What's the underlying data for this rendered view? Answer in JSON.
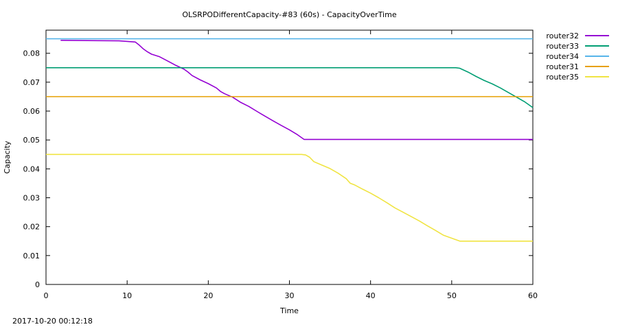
{
  "footer": {
    "timestamp": "2017-10-20 00:12:18"
  },
  "chart_data": {
    "type": "line",
    "title": "OLSRPODifferentCapacity-#83 (60s) - CapacityOverTime",
    "xlabel": "Time",
    "ylabel": "Capacity",
    "xlim": [
      0,
      60
    ],
    "ylim": [
      0,
      0.088
    ],
    "xticks": [
      0,
      10,
      20,
      30,
      40,
      50,
      60
    ],
    "xtick_labels": [
      "0",
      "10",
      "20",
      "30",
      "40",
      "50",
      "60"
    ],
    "yticks": [
      0,
      0.01,
      0.02,
      0.03,
      0.04,
      0.05,
      0.06,
      0.07,
      0.08
    ],
    "ytick_labels": [
      "0",
      "0.01",
      "0.02",
      "0.03",
      "0.04",
      "0.05",
      "0.06",
      "0.07",
      "0.08"
    ],
    "grid": false,
    "legend_position": "outside-top-right",
    "series": [
      {
        "name": "router32",
        "color": "#9400d3",
        "x": [
          1.8,
          9.0,
          11.0,
          11.5,
          12.0,
          12.5,
          13.0,
          14.0,
          15.0,
          16.0,
          17.0,
          17.5,
          18.0,
          19.0,
          20.0,
          21.0,
          21.5,
          22.0,
          23.0,
          24.0,
          25.0,
          26.0,
          27.0,
          28.0,
          29.0,
          30.0,
          31.0,
          31.8,
          40.0,
          50.0,
          60.0
        ],
        "y": [
          0.0845,
          0.0843,
          0.0839,
          0.0828,
          0.0815,
          0.0805,
          0.0797,
          0.0788,
          0.0773,
          0.0758,
          0.0745,
          0.0735,
          0.0723,
          0.0708,
          0.0695,
          0.068,
          0.0668,
          0.066,
          0.0648,
          0.063,
          0.0616,
          0.0599,
          0.0582,
          0.0566,
          0.055,
          0.0535,
          0.0518,
          0.0502,
          0.0502,
          0.0502,
          0.0502
        ]
      },
      {
        "name": "router33",
        "color": "#009e73",
        "x": [
          0,
          10,
          20,
          30,
          40,
          50.5,
          51.0,
          52.0,
          53.0,
          54.0,
          55.0,
          56.0,
          57.0,
          58.0,
          59.0,
          60.0
        ],
        "y": [
          0.075,
          0.075,
          0.075,
          0.075,
          0.075,
          0.075,
          0.0748,
          0.0735,
          0.072,
          0.0706,
          0.0694,
          0.068,
          0.0664,
          0.0648,
          0.0632,
          0.0612
        ]
      },
      {
        "name": "router34",
        "color": "#56b4e9",
        "x": [
          0,
          60
        ],
        "y": [
          0.085,
          0.085
        ]
      },
      {
        "name": "router31",
        "color": "#e69f00",
        "x": [
          0,
          60
        ],
        "y": [
          0.065,
          0.065
        ]
      },
      {
        "name": "router35",
        "color": "#f0e442",
        "x": [
          0,
          31.5,
          32.0,
          32.5,
          33.0,
          34.0,
          35.0,
          36.0,
          37.0,
          37.5,
          38.0,
          39.0,
          40.0,
          41.0,
          42.0,
          43.0,
          44.0,
          45.0,
          46.0,
          47.0,
          48.0,
          49.0,
          50.0,
          51.0,
          55.0,
          60.0
        ],
        "y": [
          0.045,
          0.045,
          0.0448,
          0.044,
          0.0425,
          0.0413,
          0.0401,
          0.0385,
          0.0366,
          0.035,
          0.0345,
          0.033,
          0.0316,
          0.03,
          0.0283,
          0.0265,
          0.025,
          0.0235,
          0.022,
          0.0203,
          0.0187,
          0.017,
          0.016,
          0.015,
          0.015,
          0.015
        ]
      }
    ]
  }
}
